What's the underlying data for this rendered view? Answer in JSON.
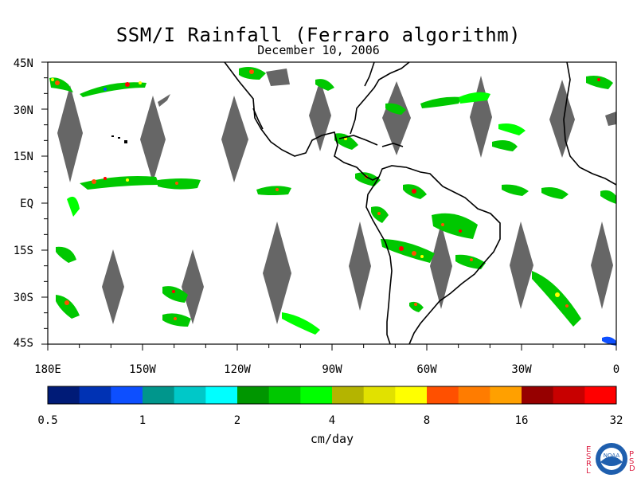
{
  "title": "SSM/I Rainfall (Ferraro algorithm)",
  "subtitle": "December 10, 2006",
  "lat_labels": [
    "45N",
    "30N",
    "15N",
    "EQ",
    "15S",
    "30S",
    "45S"
  ],
  "lon_labels": [
    "180E",
    "150W",
    "120W",
    "90W",
    "60W",
    "30W",
    "0"
  ],
  "colorbar": {
    "colors": [
      "#001b77",
      "#0032b4",
      "#0d4fff",
      "#00968c",
      "#00c8c8",
      "#00ffff",
      "#009600",
      "#00c800",
      "#00ff00",
      "#b4b400",
      "#e1e100",
      "#ffff00",
      "#ff5000",
      "#ff7c00",
      "#ffa000",
      "#960000",
      "#c80000",
      "#ff0000"
    ],
    "tick_labels": [
      "0.5",
      "1",
      "2",
      "4",
      "8",
      "16",
      "32"
    ],
    "units": "cm/day"
  },
  "logo": {
    "left": "E S R L",
    "right": "P S D",
    "center": "NOAA"
  },
  "colors": {
    "missing_swath": "#666666",
    "coast": "#000000",
    "frame": "#000000"
  }
}
